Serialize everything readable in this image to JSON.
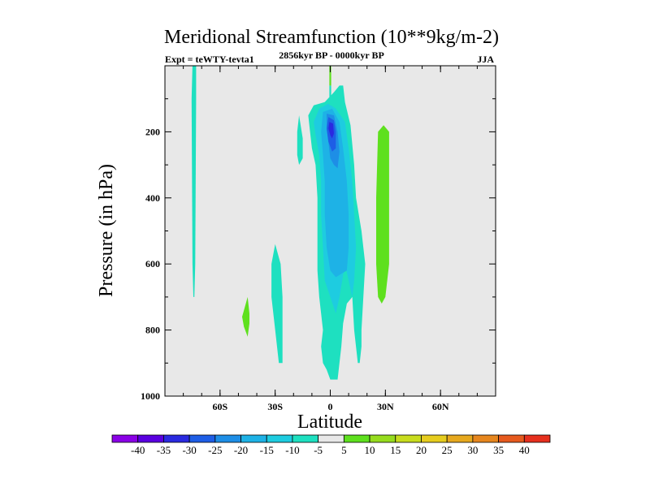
{
  "chart_data": {
    "type": "heatmap",
    "title": "Meridional Streamfunction (10**9kg/m-2)",
    "subtitle_left": "Expt = teWTY-tevta1",
    "subtitle_center": "2856kyr BP - 0000kyr BP",
    "subtitle_right": "JJA",
    "xlabel": "Latitude",
    "ylabel": "Pressure (in hPa)",
    "xlim": [
      -90,
      90
    ],
    "ylim": [
      1000,
      0
    ],
    "x_ticks": [
      {
        "value": -60,
        "label": "60S"
      },
      {
        "value": -30,
        "label": "30S"
      },
      {
        "value": 0,
        "label": "0"
      },
      {
        "value": 30,
        "label": "30N"
      },
      {
        "value": 60,
        "label": "60N"
      }
    ],
    "y_ticks": [
      {
        "value": 200,
        "label": "200"
      },
      {
        "value": 400,
        "label": "400"
      },
      {
        "value": 600,
        "label": "600"
      },
      {
        "value": 800,
        "label": "800"
      },
      {
        "value": 1000,
        "label": "1000"
      }
    ],
    "background_color": "#e8e8e8",
    "colorbar": {
      "levels": [
        -40,
        -35,
        -30,
        -25,
        -20,
        -15,
        -10,
        -5,
        5,
        10,
        15,
        20,
        25,
        30,
        35,
        40
      ],
      "labels": [
        "-40",
        "-35",
        "-30",
        "-25",
        "-20",
        "-15",
        "-10",
        "-5",
        "5",
        "10",
        "15",
        "20",
        "25",
        "30",
        "35",
        "40"
      ],
      "colors": [
        "#8a00e6",
        "#5a00e0",
        "#2a2ae0",
        "#1e5ee6",
        "#1e8ee6",
        "#1eb2e6",
        "#1ecce0",
        "#1ee0c0",
        "#e8e8e8",
        "#5ee01e",
        "#96dc1e",
        "#c8dc1e",
        "#e6cc1e",
        "#e6a81e",
        "#e6861e",
        "#e65a1e",
        "#e6301e"
      ]
    },
    "regions": [
      {
        "level": -5,
        "color": "#1ee0c0",
        "points": [
          [
            -75,
            0
          ],
          [
            -73,
            0
          ],
          [
            -73,
            100
          ],
          [
            -73.5,
            600
          ],
          [
            -74,
            700
          ],
          [
            -74.5,
            700
          ],
          [
            -75,
            600
          ],
          [
            -75.5,
            100
          ]
        ]
      },
      {
        "level": -5,
        "color": "#1ee0c0",
        "points": [
          [
            -17,
            150
          ],
          [
            -15,
            220
          ],
          [
            -15,
            280
          ],
          [
            -17,
            300
          ],
          [
            -18,
            270
          ],
          [
            -18,
            200
          ]
        ]
      },
      {
        "level": -5,
        "color": "#1ee0c0",
        "points": [
          [
            -30,
            540
          ],
          [
            -27,
            600
          ],
          [
            -26,
            700
          ],
          [
            -26,
            800
          ],
          [
            -26,
            900
          ],
          [
            -28,
            900
          ],
          [
            -30,
            800
          ],
          [
            -32,
            700
          ],
          [
            -32,
            600
          ]
        ]
      },
      {
        "level": -5,
        "color": "#1ee0c0",
        "points": [
          [
            -9,
            120
          ],
          [
            -3,
            110
          ],
          [
            2,
            80
          ],
          [
            5,
            60
          ],
          [
            7,
            60
          ],
          [
            8,
            110
          ],
          [
            11,
            180
          ],
          [
            13,
            300
          ],
          [
            14,
            400
          ],
          [
            17,
            500
          ],
          [
            19,
            600
          ],
          [
            18,
            700
          ],
          [
            17,
            800
          ],
          [
            17,
            850
          ],
          [
            16,
            900
          ],
          [
            15,
            900
          ],
          [
            13,
            800
          ],
          [
            12,
            700
          ],
          [
            9,
            720
          ],
          [
            7,
            780
          ],
          [
            6,
            850
          ],
          [
            5,
            900
          ],
          [
            4,
            950
          ],
          [
            0,
            950
          ],
          [
            -2,
            920
          ],
          [
            -4,
            900
          ],
          [
            -5,
            850
          ],
          [
            -4,
            800
          ],
          [
            -5,
            750
          ],
          [
            -6,
            700
          ],
          [
            -7,
            620
          ],
          [
            -7,
            500
          ],
          [
            -7,
            400
          ],
          [
            -8,
            300
          ],
          [
            -10,
            250
          ],
          [
            -11,
            200
          ],
          [
            -12,
            150
          ]
        ]
      },
      {
        "level": -10,
        "color": "#1ecce0",
        "points": [
          [
            -6,
            130
          ],
          [
            -1,
            115
          ],
          [
            3,
            130
          ],
          [
            8,
            170
          ],
          [
            10,
            250
          ],
          [
            12,
            350
          ],
          [
            13,
            450
          ],
          [
            14,
            550
          ],
          [
            13,
            650
          ],
          [
            12,
            700
          ],
          [
            10,
            650
          ],
          [
            8,
            600
          ],
          [
            5,
            700
          ],
          [
            3,
            750
          ],
          [
            0,
            700
          ],
          [
            -3,
            650
          ],
          [
            -4,
            550
          ],
          [
            -5,
            450
          ],
          [
            -5,
            350
          ],
          [
            -6,
            270
          ],
          [
            -8,
            210
          ],
          [
            -9,
            170
          ]
        ]
      },
      {
        "level": -15,
        "color": "#1eb2e6",
        "points": [
          [
            -4,
            140
          ],
          [
            1,
            130
          ],
          [
            5,
            170
          ],
          [
            7,
            250
          ],
          [
            9,
            350
          ],
          [
            10,
            450
          ],
          [
            10,
            550
          ],
          [
            9,
            620
          ],
          [
            6,
            630
          ],
          [
            3,
            640
          ],
          [
            0,
            620
          ],
          [
            -2,
            550
          ],
          [
            -3,
            450
          ],
          [
            -3,
            350
          ],
          [
            -4,
            270
          ],
          [
            -5,
            200
          ]
        ]
      },
      {
        "level": -20,
        "color": "#1e8ee6",
        "points": [
          [
            -2,
            145
          ],
          [
            2,
            150
          ],
          [
            4,
            200
          ],
          [
            5,
            260
          ],
          [
            4,
            310
          ],
          [
            2,
            300
          ],
          [
            0,
            280
          ],
          [
            -1,
            230
          ],
          [
            -2,
            190
          ]
        ]
      },
      {
        "level": -25,
        "color": "#1e5ee6",
        "points": [
          [
            -1,
            155
          ],
          [
            2,
            165
          ],
          [
            3,
            200
          ],
          [
            3,
            250
          ],
          [
            1,
            260
          ],
          [
            -1,
            230
          ],
          [
            -2,
            190
          ]
        ]
      },
      {
        "level": -30,
        "color": "#2a2ae0",
        "points": [
          [
            -0.5,
            170
          ],
          [
            1.5,
            175
          ],
          [
            2,
            205
          ],
          [
            1,
            220
          ],
          [
            0,
            210
          ],
          [
            -1,
            190
          ]
        ]
      },
      {
        "level": -5,
        "color": "#1ee0c0",
        "points": [
          [
            -0.5,
            60
          ],
          [
            0.5,
            60
          ],
          [
            0.5,
            120
          ],
          [
            -0.5,
            120
          ]
        ]
      },
      {
        "level": 5,
        "color": "#5ee01e",
        "points": [
          [
            -0.5,
            0
          ],
          [
            0.5,
            0
          ],
          [
            0.5,
            60
          ],
          [
            -0.5,
            60
          ]
        ]
      },
      {
        "level": 5,
        "color": "#5ee01e",
        "points": [
          [
            29,
            180
          ],
          [
            32,
            200
          ],
          [
            32,
            400
          ],
          [
            32,
            600
          ],
          [
            30,
            700
          ],
          [
            28,
            720
          ],
          [
            26,
            700
          ],
          [
            25,
            600
          ],
          [
            25,
            400
          ],
          [
            26,
            200
          ]
        ]
      },
      {
        "level": 5,
        "color": "#5ee01e",
        "points": [
          [
            -45,
            700
          ],
          [
            -44,
            750
          ],
          [
            -44,
            780
          ],
          [
            -45,
            820
          ],
          [
            -47,
            790
          ],
          [
            -48,
            760
          ]
        ]
      }
    ]
  }
}
